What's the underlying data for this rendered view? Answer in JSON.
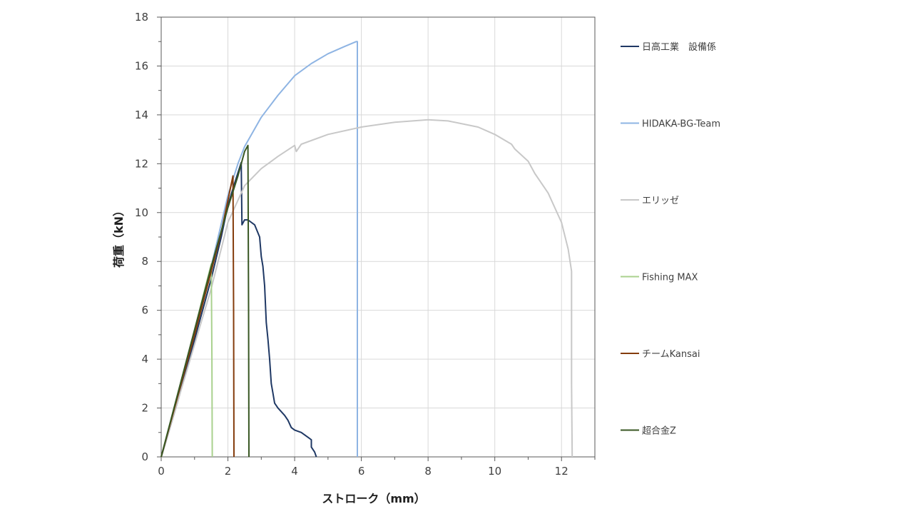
{
  "chart_data": {
    "type": "line",
    "xlabel": "ストローク（mm）",
    "ylabel": "荷重（kN）",
    "xlim": [
      0,
      13
    ],
    "ylim": [
      0,
      18
    ],
    "xticks": [
      0,
      2,
      4,
      6,
      8,
      10,
      12
    ],
    "yticks": [
      0,
      2,
      4,
      6,
      8,
      10,
      12,
      14,
      16,
      18
    ],
    "grid": true,
    "legend_position": "right",
    "series": [
      {
        "name": "日高工業　設備係",
        "color": "#1f3864",
        "points": [
          [
            0,
            0
          ],
          [
            0.1,
            0.45
          ],
          [
            0.5,
            2.3
          ],
          [
            1,
            4.8
          ],
          [
            1.5,
            7.3
          ],
          [
            1.8,
            9.0
          ],
          [
            2.0,
            10.3
          ],
          [
            2.2,
            11.2
          ],
          [
            2.4,
            12.05
          ],
          [
            2.42,
            9.5
          ],
          [
            2.5,
            9.7
          ],
          [
            2.6,
            9.7
          ],
          [
            2.8,
            9.5
          ],
          [
            2.95,
            9.0
          ],
          [
            3.0,
            8.2
          ],
          [
            3.05,
            7.8
          ],
          [
            3.1,
            7.0
          ],
          [
            3.15,
            5.5
          ],
          [
            3.2,
            4.8
          ],
          [
            3.25,
            4.0
          ],
          [
            3.3,
            3.0
          ],
          [
            3.35,
            2.6
          ],
          [
            3.4,
            2.2
          ],
          [
            3.5,
            2.0
          ],
          [
            3.7,
            1.7
          ],
          [
            3.8,
            1.5
          ],
          [
            3.9,
            1.2
          ],
          [
            4.0,
            1.1
          ],
          [
            4.2,
            1.0
          ],
          [
            4.4,
            0.8
          ],
          [
            4.5,
            0.7
          ],
          [
            4.5,
            0.4
          ],
          [
            4.6,
            0.2
          ],
          [
            4.65,
            0
          ]
        ]
      },
      {
        "name": "HIDAKA-BG-Team",
        "color": "#8eb4e3",
        "points": [
          [
            0,
            0
          ],
          [
            0.5,
            2.6
          ],
          [
            1,
            5.2
          ],
          [
            1.5,
            7.8
          ],
          [
            2.0,
            10.7
          ],
          [
            2.3,
            12.0
          ],
          [
            2.5,
            12.7
          ],
          [
            3.0,
            13.9
          ],
          [
            3.5,
            14.8
          ],
          [
            4.0,
            15.6
          ],
          [
            4.5,
            16.1
          ],
          [
            5.0,
            16.5
          ],
          [
            5.5,
            16.8
          ],
          [
            5.85,
            17.0
          ],
          [
            5.88,
            17.0
          ],
          [
            5.88,
            0
          ]
        ]
      },
      {
        "name": "エリッゼ",
        "color": "#c8c8c8",
        "points": [
          [
            0,
            0
          ],
          [
            0.5,
            2.3
          ],
          [
            1,
            4.6
          ],
          [
            1.5,
            6.9
          ],
          [
            2.0,
            9.6
          ],
          [
            2.5,
            11.1
          ],
          [
            3.0,
            11.8
          ],
          [
            3.5,
            12.3
          ],
          [
            4.0,
            12.75
          ],
          [
            4.05,
            12.5
          ],
          [
            4.2,
            12.8
          ],
          [
            5.0,
            13.2
          ],
          [
            6.0,
            13.5
          ],
          [
            7.0,
            13.7
          ],
          [
            8.0,
            13.8
          ],
          [
            8.6,
            13.75
          ],
          [
            9.5,
            13.5
          ],
          [
            10.0,
            13.2
          ],
          [
            10.5,
            12.8
          ],
          [
            10.6,
            12.6
          ],
          [
            11.0,
            12.1
          ],
          [
            11.2,
            11.6
          ],
          [
            11.6,
            10.8
          ],
          [
            12.0,
            9.6
          ],
          [
            12.2,
            8.5
          ],
          [
            12.3,
            7.6
          ],
          [
            12.3,
            3.0
          ],
          [
            12.32,
            0
          ]
        ]
      },
      {
        "name": "Fishing MAX",
        "color": "#a9d18e",
        "points": [
          [
            0,
            0
          ],
          [
            0.5,
            2.6
          ],
          [
            1.0,
            5.2
          ],
          [
            1.5,
            7.9
          ],
          [
            1.52,
            4.0
          ],
          [
            1.53,
            0
          ]
        ]
      },
      {
        "name": "チームKansai",
        "color": "#843c0c",
        "points": [
          [
            0,
            0
          ],
          [
            0.5,
            2.5
          ],
          [
            1.0,
            5.0
          ],
          [
            1.5,
            7.6
          ],
          [
            1.8,
            9.2
          ],
          [
            2.0,
            10.5
          ],
          [
            2.15,
            11.5
          ],
          [
            2.17,
            6.0
          ],
          [
            2.18,
            0
          ]
        ]
      },
      {
        "name": "超合金Z",
        "color": "#385723",
        "points": [
          [
            0,
            0
          ],
          [
            0.5,
            2.6
          ],
          [
            1.0,
            5.2
          ],
          [
            1.5,
            7.8
          ],
          [
            2.0,
            10.2
          ],
          [
            2.3,
            11.5
          ],
          [
            2.5,
            12.5
          ],
          [
            2.6,
            12.75
          ],
          [
            2.62,
            6.0
          ],
          [
            2.63,
            0
          ]
        ]
      }
    ]
  }
}
